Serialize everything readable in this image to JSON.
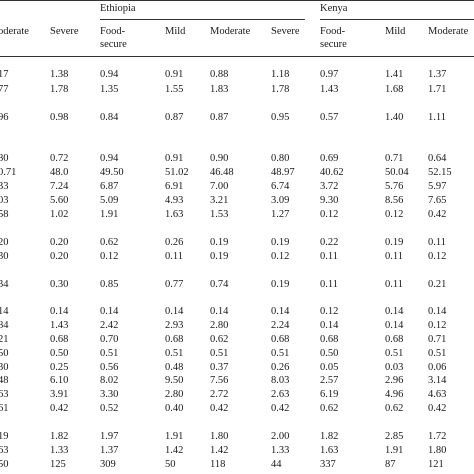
{
  "groups": [
    {
      "label": "Ethiopia"
    },
    {
      "label": "Kenya"
    }
  ],
  "headers": [
    "oderate",
    "Severe",
    "Food-\nsecure",
    "Mild",
    "Moderate",
    "Severe",
    "Food-\nsecure",
    "Mild",
    "Moderate"
  ],
  "rows": [
    [
      "17",
      "1.38",
      "0.94",
      "0.91",
      "0.88",
      "1.18",
      "0.97",
      "1.41",
      "1.37"
    ],
    [
      "77",
      "1.78",
      "1.35",
      "1.55",
      "1.83",
      "1.78",
      "1.43",
      "1.68",
      "1.71"
    ],
    [
      "96",
      "0.98",
      "0.84",
      "0.87",
      "0.87",
      "0.95",
      "0.57",
      "1.40",
      "1.11"
    ],
    [
      "80",
      "0.72",
      "0.94",
      "0.91",
      "0.90",
      "0.80",
      "0.69",
      "0.71",
      "0.64"
    ],
    [
      "0.71",
      "48.0",
      "49.50",
      "51.02",
      "46.48",
      "48.97",
      "40.62",
      "50.04",
      "52.15"
    ],
    [
      "33",
      "7.24",
      "6.87",
      "6.91",
      "7.00",
      "6.74",
      "3.72",
      "5.76",
      "5.97"
    ],
    [
      "03",
      "5.60",
      "5.09",
      "4.93",
      "3.21",
      "3.09",
      "9.30",
      "8.56",
      "7.65"
    ],
    [
      "58",
      "1.02",
      "1.91",
      "1.63",
      "1.53",
      "1.27",
      "0.12",
      "0.12",
      "0.42"
    ],
    [
      "20",
      "0.20",
      "0.62",
      "0.26",
      "0.19",
      "0.19",
      "0.22",
      "0.19",
      "0.11"
    ],
    [
      "30",
      "0.20",
      "0.12",
      "0.11",
      "0.19",
      "0.12",
      "0.11",
      "0.11",
      "0.12"
    ],
    [
      "34",
      "0.30",
      "0.85",
      "0.77",
      "0.74",
      "0.19",
      "0.11",
      "0.11",
      "0.21"
    ],
    [
      "14",
      "0.14",
      "0.14",
      "0.14",
      "0.14",
      "0.14",
      "0.12",
      "0.14",
      "0.14"
    ],
    [
      "84",
      "1.43",
      "2.42",
      "2.93",
      "2.80",
      "2.24",
      "0.14",
      "0.14",
      "0.12"
    ],
    [
      "21",
      "0.68",
      "0.70",
      "0.68",
      "0.62",
      "0.68",
      "0.68",
      "0.68",
      "0.71"
    ],
    [
      "50",
      "0.50",
      "0.51",
      "0.51",
      "0.51",
      "0.51",
      "0.50",
      "0.51",
      "0.51"
    ],
    [
      "30",
      "0.25",
      "0.56",
      "0.48",
      "0.37",
      "0.26",
      "0.05",
      "0.03",
      "0.06"
    ],
    [
      "48",
      "6.10",
      "8.02",
      "9.50",
      "7.56",
      "8.03",
      "2.57",
      "2.96",
      "3.14"
    ],
    [
      "63",
      "3.91",
      "3.30",
      "2.80",
      "2.72",
      "2.63",
      "6.19",
      "4.96",
      "4.63"
    ],
    [
      "61",
      "0.42",
      "0.52",
      "0.40",
      "0.42",
      "0.42",
      "0.62",
      "0.62",
      "0.42"
    ],
    [
      "19",
      "1.82",
      "1.97",
      "1.91",
      "1.80",
      "2.00",
      "1.82",
      "2.85",
      "1.72"
    ],
    [
      "63",
      "1.33",
      "1.37",
      "1.42",
      "1.42",
      "1.33",
      "1.63",
      "1.91",
      "1.80"
    ],
    [
      "50",
      "125",
      "309",
      "50",
      "118",
      "44",
      "337",
      "87",
      "121"
    ]
  ]
}
